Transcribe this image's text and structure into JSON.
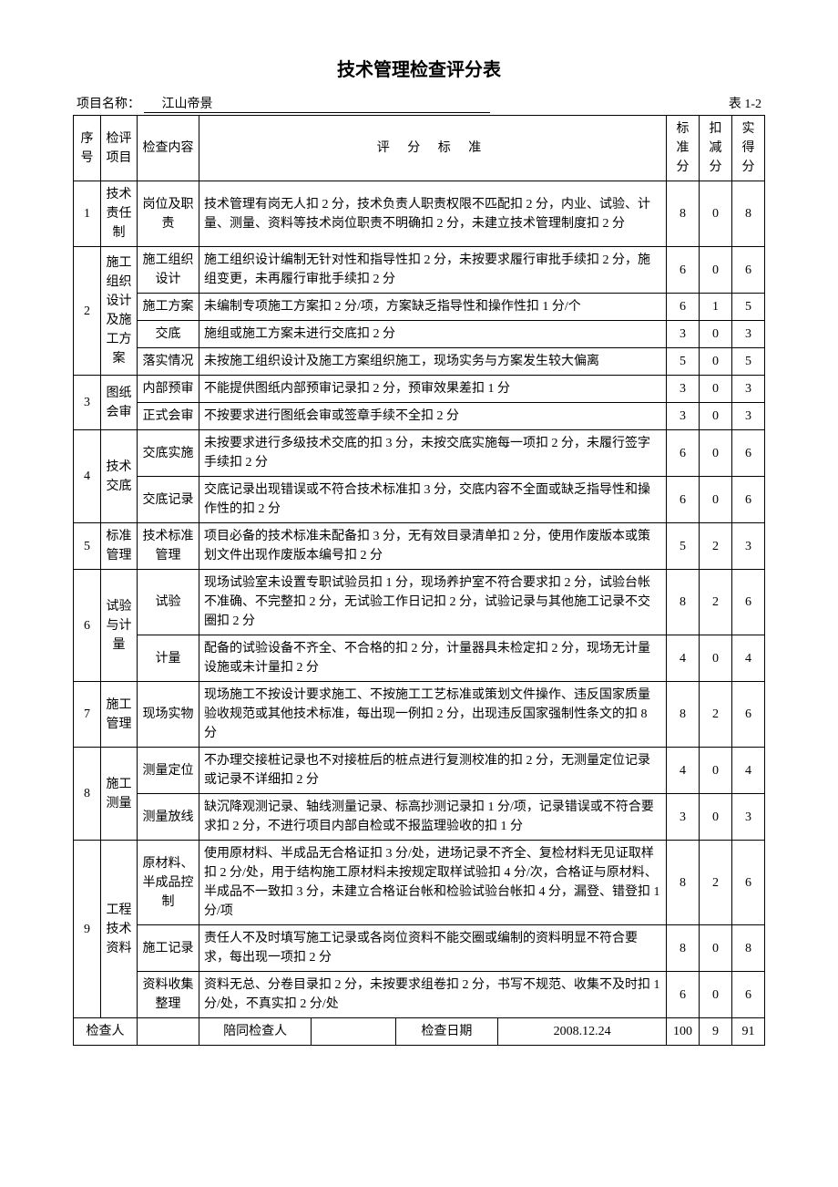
{
  "title": "技术管理检查评分表",
  "project_label": "项目名称：",
  "project_name": "江山帝景",
  "table_number": "表 1-2",
  "headers": {
    "seq": "序号",
    "category": "检评项目",
    "item": "检查内容",
    "criteria": "评 分 标 准",
    "standard": "标准分",
    "deduction": "扣减分",
    "actual": "实得分"
  },
  "rows": [
    {
      "seq": "1",
      "cat": "技术责任制",
      "item": "岗位及职责",
      "crit": "技术管理有岗无人扣 2 分，技术负责人职责权限不匹配扣 2 分，内业、试验、计量、测量、资料等技术岗位职责不明确扣 2 分，未建立技术管理制度扣 2 分",
      "std": "8",
      "ded": "0",
      "act": "8",
      "catRowspan": 1
    },
    {
      "seq": "2",
      "cat": "施工组织设计及施工方案",
      "item": "施工组织设计",
      "crit": "施工组织设计编制无针对性和指导性扣 2 分，未按要求履行审批手续扣 2 分，施组变更，未再履行审批手续扣 2 分",
      "std": "6",
      "ded": "0",
      "act": "6",
      "catRowspan": 4
    },
    {
      "item": "施工方案",
      "crit": "未编制专项施工方案扣 2 分/项，方案缺乏指导性和操作性扣 1 分/个",
      "std": "6",
      "ded": "1",
      "act": "5"
    },
    {
      "item": "交底",
      "crit": "施组或施工方案未进行交底扣 2 分",
      "std": "3",
      "ded": "0",
      "act": "3"
    },
    {
      "item": "落实情况",
      "crit": "未按施工组织设计及施工方案组织施工，现场实务与方案发生较大偏离",
      "std": "5",
      "ded": "0",
      "act": "5"
    },
    {
      "seq": "3",
      "cat": "图纸会审",
      "item": "内部预审",
      "crit": "不能提供图纸内部预审记录扣 2 分，预审效果差扣 1 分",
      "std": "3",
      "ded": "0",
      "act": "3",
      "catRowspan": 2
    },
    {
      "item": "正式会审",
      "crit": "不按要求进行图纸会审或签章手续不全扣 2 分",
      "std": "3",
      "ded": "0",
      "act": "3"
    },
    {
      "seq": "4",
      "cat": "技术交底",
      "item": "交底实施",
      "crit": "未按要求进行多级技术交底的扣 3 分，未按交底实施每一项扣 2 分，未履行签字手续扣 2 分",
      "std": "6",
      "ded": "0",
      "act": "6",
      "catRowspan": 2
    },
    {
      "item": "交底记录",
      "crit": "交底记录出现错误或不符合技术标准扣 3 分，交底内容不全面或缺乏指导性和操作性的扣 2 分",
      "std": "6",
      "ded": "0",
      "act": "6"
    },
    {
      "seq": "5",
      "cat": "标准管理",
      "item": "技术标准管理",
      "crit": "项目必备的技术标准未配备扣 3 分，无有效目录清单扣 2 分，使用作废版本或策划文件出现作废版本编号扣 2 分",
      "std": "5",
      "ded": "2",
      "act": "3",
      "catRowspan": 1
    },
    {
      "seq": "6",
      "cat": "试验与计量",
      "item": "试验",
      "crit": "现场试验室未设置专职试验员扣 1 分，现场养护室不符合要求扣 2 分，试验台帐不准确、不完整扣 2 分，无试验工作日记扣 2 分，试验记录与其他施工记录不交圈扣 2 分",
      "std": "8",
      "ded": "2",
      "act": "6",
      "catRowspan": 2
    },
    {
      "item": "计量",
      "crit": "配备的试验设备不齐全、不合格的扣 2 分，计量器具未检定扣 2 分，现场无计量设施或未计量扣 2 分",
      "std": "4",
      "ded": "0",
      "act": "4"
    },
    {
      "seq": "7",
      "cat": "施工管理",
      "item": "现场实物",
      "crit": "现场施工不按设计要求施工、不按施工工艺标准或策划文件操作、违反国家质量验收规范或其他技术标准，每出现一例扣 2 分，出现违反国家强制性条文的扣 8 分",
      "std": "8",
      "ded": "2",
      "act": "6",
      "catRowspan": 1
    },
    {
      "seq": "8",
      "cat": "施工测量",
      "item": "测量定位",
      "crit": "不办理交接桩记录也不对接桩后的桩点进行复测校准的扣 2 分，无测量定位记录或记录不详细扣 2 分",
      "std": "4",
      "ded": "0",
      "act": "4",
      "catRowspan": 2
    },
    {
      "item": "测量放线",
      "crit": "缺沉降观测记录、轴线测量记录、标高抄测记录扣 1 分/项，记录错误或不符合要求扣 2 分，不进行项目内部自检或不报监理验收的扣 1 分",
      "std": "3",
      "ded": "0",
      "act": "3"
    },
    {
      "seq": "9",
      "cat": "工程技术资料",
      "item": "原材料、半成品控制",
      "crit": "使用原材料、半成品无合格证扣 3 分/处，进场记录不齐全、复检材料无见证取样扣 2 分/处，用于结构施工原材料未按规定取样试验扣 4 分/次，合格证与原材料、半成品不一致扣 3 分，未建立合格证台帐和检验试验台帐扣 4 分，漏登、错登扣 1 分/项",
      "std": "8",
      "ded": "2",
      "act": "6",
      "catRowspan": 3
    },
    {
      "item": "施工记录",
      "crit": "责任人不及时填写施工记录或各岗位资料不能交圈或编制的资料明显不符合要求，每出现一项扣 2 分",
      "std": "8",
      "ded": "0",
      "act": "8"
    },
    {
      "item": "资料收集整理",
      "crit": "资料无总、分卷目录扣 2 分，未按要求组卷扣 2 分，书写不规范、收集不及时扣 1 分/处，不真实扣 2 分/处",
      "std": "6",
      "ded": "0",
      "act": "6"
    }
  ],
  "footer": {
    "inspector_label": "检查人",
    "inspector": "",
    "companion_label": "陪同检查人",
    "companion": "",
    "date_label": "检查日期",
    "date": "2008.12.24",
    "total_std": "100",
    "total_ded": "9",
    "total_act": "91"
  }
}
